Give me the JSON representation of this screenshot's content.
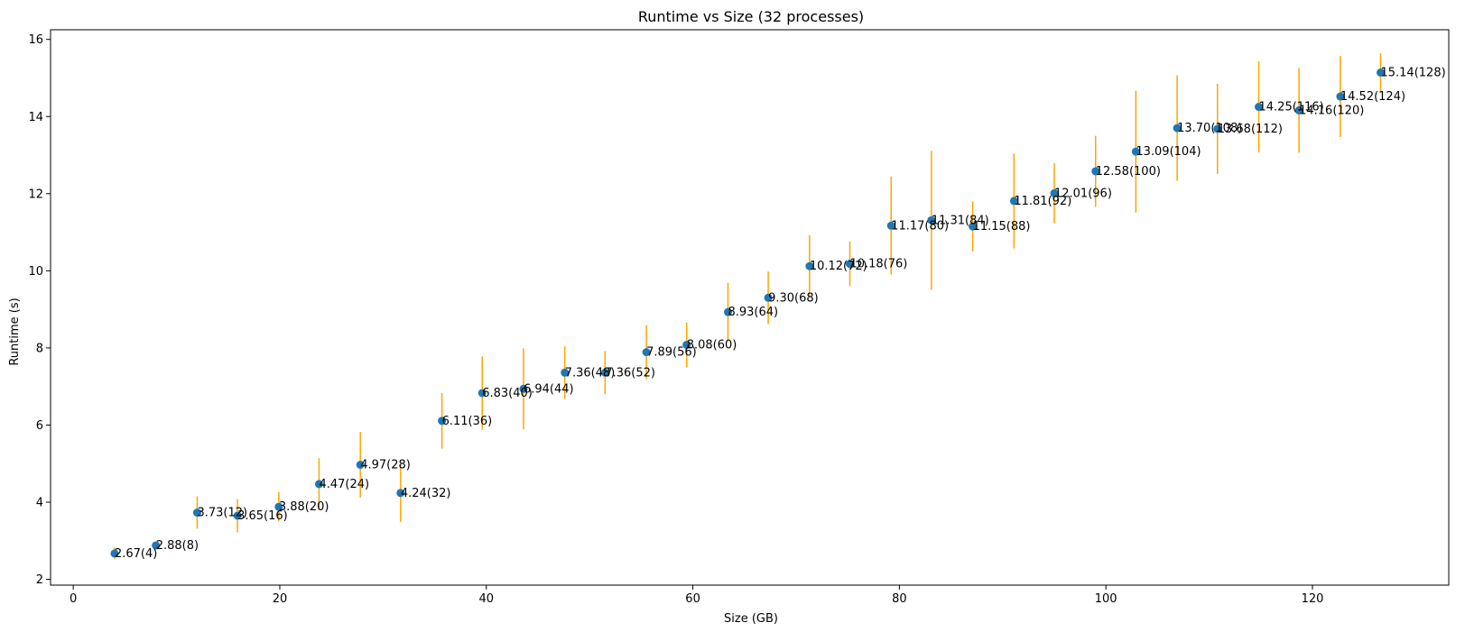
{
  "chart_data": {
    "type": "scatter",
    "title": "Runtime vs Size (32 processes)",
    "xlabel": "Size (GB)",
    "ylabel": "Runtime (s)",
    "xlim": [
      -2.2,
      133.2
    ],
    "ylim": [
      1.85,
      16.25
    ],
    "xticks": [
      0,
      20,
      40,
      60,
      80,
      100,
      120
    ],
    "yticks": [
      2,
      4,
      6,
      8,
      10,
      12,
      14,
      16
    ],
    "grid": false,
    "colors": {
      "marker": "#1f77b4",
      "errorbar": "#ffa500"
    },
    "points": [
      {
        "x": 4.0,
        "y": 2.67,
        "err": 0.15,
        "label": "2.67(4)"
      },
      {
        "x": 8.0,
        "y": 2.88,
        "err": 0.08,
        "label": "2.88(8)"
      },
      {
        "x": 12.0,
        "y": 3.73,
        "err": 0.42,
        "label": "3.73(12)"
      },
      {
        "x": 15.9,
        "y": 3.65,
        "err": 0.43,
        "label": "3.65(16)"
      },
      {
        "x": 19.9,
        "y": 3.88,
        "err": 0.38,
        "label": "3.88(20)"
      },
      {
        "x": 23.8,
        "y": 4.47,
        "err": 0.67,
        "label": "4.47(24)"
      },
      {
        "x": 27.8,
        "y": 4.97,
        "err": 0.85,
        "label": "4.97(28)"
      },
      {
        "x": 31.7,
        "y": 4.24,
        "err": 0.75,
        "label": "4.24(32)"
      },
      {
        "x": 35.7,
        "y": 6.11,
        "err": 0.72,
        "label": "6.11(36)"
      },
      {
        "x": 39.6,
        "y": 6.83,
        "err": 0.95,
        "label": "6.83(40)"
      },
      {
        "x": 43.6,
        "y": 6.94,
        "err": 1.05,
        "label": "6.94(44)"
      },
      {
        "x": 47.6,
        "y": 7.36,
        "err": 0.68,
        "label": "7.36(48)"
      },
      {
        "x": 51.5,
        "y": 7.36,
        "err": 0.56,
        "label": "7.36(52)"
      },
      {
        "x": 55.5,
        "y": 7.89,
        "err": 0.7,
        "label": "7.89(56)"
      },
      {
        "x": 59.4,
        "y": 8.08,
        "err": 0.58,
        "label": "8.08(60)"
      },
      {
        "x": 63.4,
        "y": 8.93,
        "err": 0.76,
        "label": "8.93(64)"
      },
      {
        "x": 67.3,
        "y": 9.3,
        "err": 0.68,
        "label": "9.30(68)"
      },
      {
        "x": 71.3,
        "y": 10.12,
        "err": 0.8,
        "label": "10.12(72)"
      },
      {
        "x": 75.2,
        "y": 10.18,
        "err": 0.58,
        "label": "10.18(76)"
      },
      {
        "x": 79.2,
        "y": 11.17,
        "err": 1.27,
        "label": "11.17(80)"
      },
      {
        "x": 83.1,
        "y": 11.31,
        "err": 1.8,
        "label": "11.31(84)"
      },
      {
        "x": 87.1,
        "y": 11.15,
        "err": 0.65,
        "label": "11.15(88)"
      },
      {
        "x": 91.1,
        "y": 11.81,
        "err": 1.23,
        "label": "11.81(92)"
      },
      {
        "x": 95.0,
        "y": 12.01,
        "err": 0.78,
        "label": "12.01(96)"
      },
      {
        "x": 99.0,
        "y": 12.58,
        "err": 0.92,
        "label": "12.58(100)"
      },
      {
        "x": 102.9,
        "y": 13.09,
        "err": 1.58,
        "label": "13.09(104)"
      },
      {
        "x": 106.9,
        "y": 13.7,
        "err": 1.37,
        "label": "13.70(108)"
      },
      {
        "x": 110.8,
        "y": 13.68,
        "err": 1.17,
        "label": "13.68(112)"
      },
      {
        "x": 114.8,
        "y": 14.25,
        "err": 1.18,
        "label": "14.25(116)"
      },
      {
        "x": 118.7,
        "y": 14.16,
        "err": 1.1,
        "label": "14.16(120)"
      },
      {
        "x": 122.7,
        "y": 14.52,
        "err": 1.05,
        "label": "14.52(124)"
      },
      {
        "x": 126.6,
        "y": 15.14,
        "err": 0.5,
        "label": "15.14(128)"
      }
    ]
  }
}
